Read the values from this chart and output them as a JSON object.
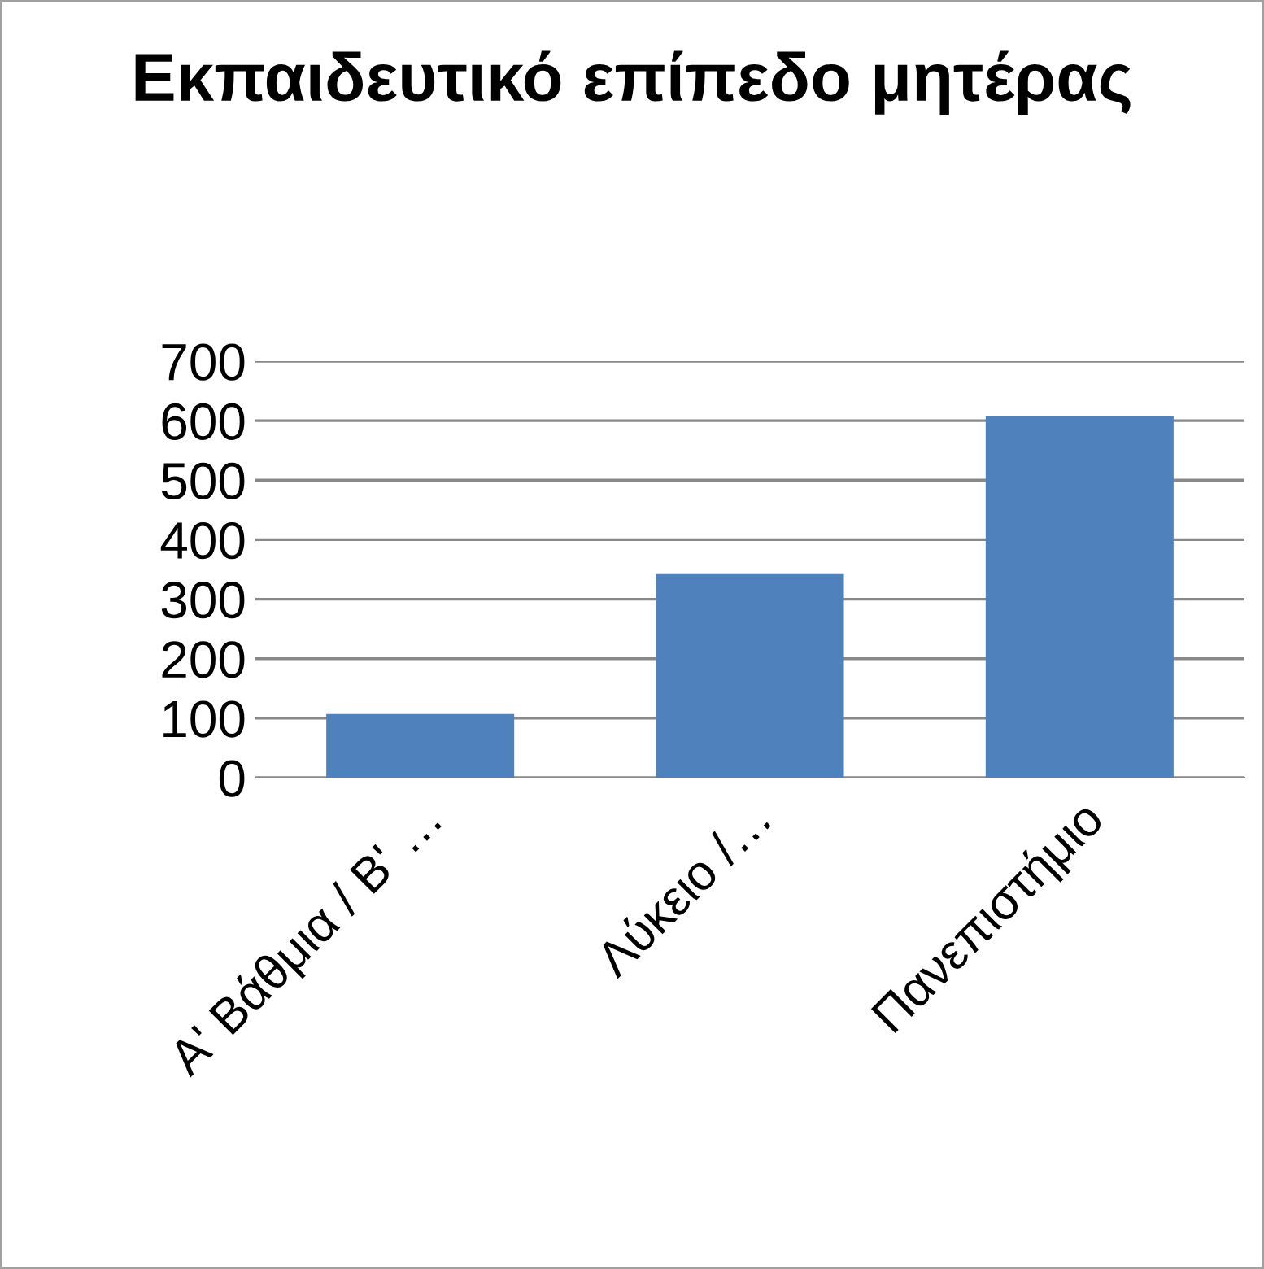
{
  "chart_data": {
    "type": "bar",
    "title": "Εκπαιδευτικό επίπεδο μητέρας",
    "categories": [
      "Α' Βάθμια / Β' …",
      "Λύκειο /…",
      "Πανεπιστήμιο"
    ],
    "values": [
      107,
      342,
      607
    ],
    "color": "#4f81bd",
    "ylim": [
      0,
      700
    ],
    "yticks": [
      0,
      100,
      200,
      300,
      400,
      500,
      600,
      700
    ],
    "grid": "y",
    "legend": false
  }
}
